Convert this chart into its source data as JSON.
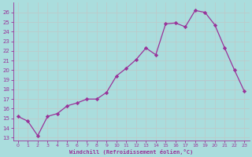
{
  "x": [
    0,
    1,
    2,
    3,
    4,
    5,
    6,
    7,
    8,
    9,
    10,
    11,
    12,
    13,
    14,
    15,
    16,
    17,
    18,
    19,
    20,
    21,
    22,
    23
  ],
  "y": [
    15.2,
    14.7,
    13.2,
    15.2,
    15.5,
    16.3,
    16.6,
    17.0,
    17.0,
    17.7,
    19.4,
    20.2,
    21.1,
    22.3,
    21.6,
    24.8,
    24.9,
    24.5,
    26.2,
    26.0,
    24.7,
    22.3,
    20.0,
    17.8
  ],
  "line_color": "#993399",
  "marker_color": "#993399",
  "bg_color": "#aadddd",
  "grid_color": "#bbcccc",
  "text_color": "#993399",
  "ylabel_ticks": [
    13,
    14,
    15,
    16,
    17,
    18,
    19,
    20,
    21,
    22,
    23,
    24,
    25,
    26
  ],
  "xlabel": "Windchill (Refroidissement éolien,°C)",
  "ylim": [
    12.7,
    27.0
  ],
  "xlim": [
    -0.5,
    23.5
  ],
  "figsize": [
    3.2,
    2.0
  ],
  "dpi": 100
}
